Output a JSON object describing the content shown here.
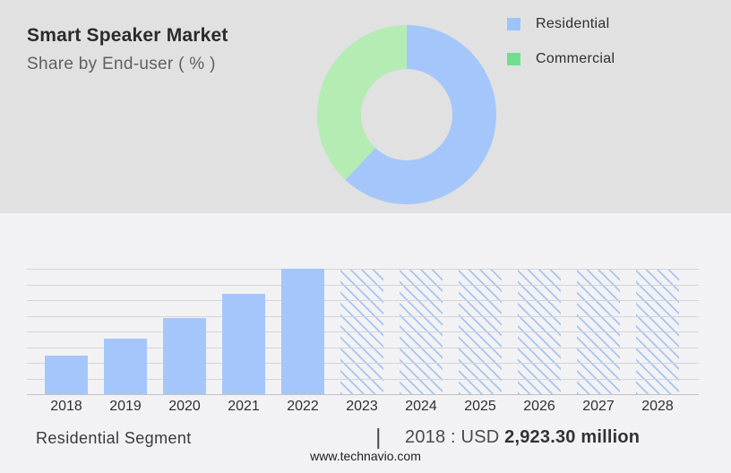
{
  "header": {
    "title": "Smart Speaker Market",
    "subtitle": "Share by End-user ( % )"
  },
  "legend": {
    "items": [
      {
        "label": "Residential",
        "color": "#9ec3fb"
      },
      {
        "label": "Commercial",
        "color": "#6fdf8e"
      }
    ]
  },
  "footer": {
    "segment_label": "Residential Segment",
    "separator": "|",
    "value_prefix": "2018 : USD ",
    "value_bold": "2,923.30 million",
    "website": "www.technavio.com"
  },
  "colors": {
    "top_panel_bg": "#e1e1e1",
    "main_bg": "#f2f2f4",
    "bar_blue": "#a5c6fa",
    "hatch_blue": "#a6c5f2",
    "donut_blue": "#a5c6fa",
    "donut_green": "#b4ecb4",
    "gridline": "#d5d5d7",
    "baseline": "#c2c2c4"
  },
  "chart_data": [
    {
      "type": "pie",
      "subtype": "donut",
      "title": "Share by End-user ( % )",
      "labels": [
        "Residential",
        "Commercial"
      ],
      "values": [
        62,
        38
      ],
      "colors": [
        "#a5c6fa",
        "#b4ecb4"
      ],
      "hole_ratio": 0.51,
      "start_angle_deg": 0,
      "legend_position": "right"
    },
    {
      "type": "bar",
      "categories": [
        "2018",
        "2019",
        "2020",
        "2021",
        "2022",
        "2023",
        "2024",
        "2025",
        "2026",
        "2027",
        "2028"
      ],
      "values_usd_million_est": [
        2923.3,
        4240,
        5850,
        7610,
        9590,
        9590,
        9590,
        9590,
        9590,
        9590,
        9590
      ],
      "relative_heights": [
        0.305,
        0.44,
        0.61,
        0.8,
        1.0,
        1.0,
        1.0,
        1.0,
        1.0,
        1.0,
        1.0
      ],
      "known_value_label": "2018 : USD 2,923.30 million",
      "forecast_start_index": 5,
      "forecast_style": "hatched",
      "bar_color": "#a5c6fa",
      "hatch_color": "#a6c5f2",
      "xlabel": "",
      "ylabel": "",
      "y_axis_labels": "none",
      "gridline_count": 8,
      "grid": true,
      "legend_position": "none"
    }
  ]
}
